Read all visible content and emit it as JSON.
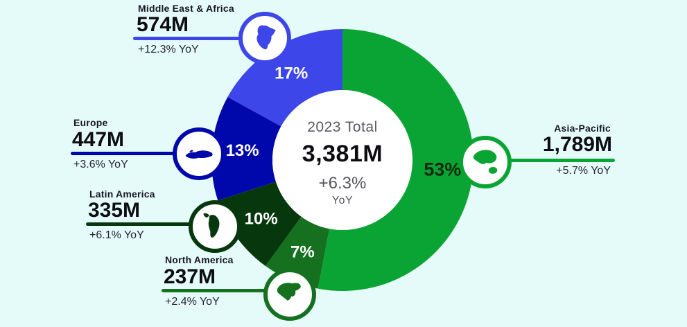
{
  "canvas": {
    "background_color": "#e5fbf9"
  },
  "chart_data": {
    "type": "pie",
    "variant": "donut",
    "direction": "clockwise",
    "start_angle_deg": 0,
    "hole_color": "#ffffff",
    "center": {
      "label": "2023 Total",
      "value": "3,381M",
      "change": "+6.3%",
      "change_unit": "YoY"
    },
    "total_value_millions": 3381,
    "units": "M",
    "legend_position": "callouts",
    "slices": [
      {
        "region": "Asia-Pacific",
        "value_millions": 1789,
        "value_label": "1,789M",
        "percent": 53,
        "percent_label": "53%",
        "yoy": "+5.7% YoY",
        "color": "#0aa434",
        "percent_text_color": "#10290f",
        "icon": "asia-pacific-map-icon"
      },
      {
        "region": "North America",
        "value_millions": 237,
        "value_label": "237M",
        "percent": 7,
        "percent_label": "7%",
        "yoy": "+2.4% YoY",
        "color": "#15701f",
        "percent_text_color": "#ffffff",
        "icon": "north-america-map-icon"
      },
      {
        "region": "Latin America",
        "value_millions": 335,
        "value_label": "335M",
        "percent": 10,
        "percent_label": "10%",
        "yoy": "+6.1% YoY",
        "color": "#07380d",
        "percent_text_color": "#ffffff",
        "icon": "south-america-map-icon"
      },
      {
        "region": "Europe",
        "value_millions": 447,
        "value_label": "447M",
        "percent": 13,
        "percent_label": "13%",
        "yoy": "+3.6% YoY",
        "color": "#0108ab",
        "percent_text_color": "#ffffff",
        "icon": "europe-map-icon"
      },
      {
        "region": "Middle East & Africa",
        "value_millions": 574,
        "value_label": "574M",
        "percent": 17,
        "percent_label": "17%",
        "yoy": "+12.3% YoY",
        "color": "#3d46e8",
        "percent_text_color": "#ffffff",
        "icon": "africa-map-icon"
      }
    ]
  }
}
